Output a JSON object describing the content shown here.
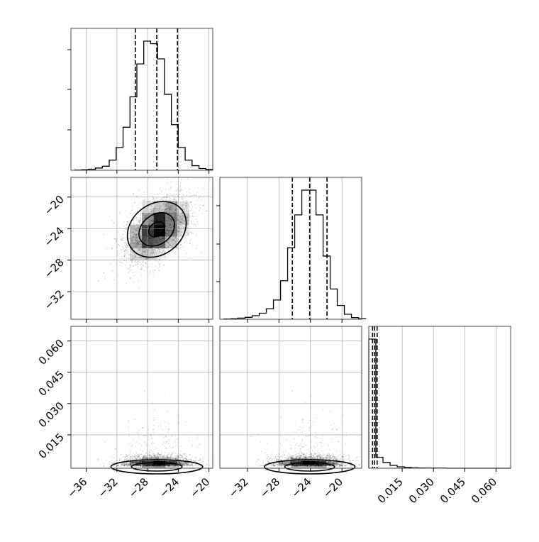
{
  "chart_data": {
    "type": "corner",
    "title": "",
    "parameters": [
      {
        "label": "",
        "range": [
          -38,
          -19.5
        ],
        "quantiles": [
          -29.6,
          -26.8,
          -24.1
        ]
      },
      {
        "label": "",
        "range": [
          -35.5,
          -17.5
        ],
        "quantiles": [
          -26.3,
          -24.1,
          -21.9
        ]
      },
      {
        "label": "",
        "range": [
          -0.001,
          0.067
        ],
        "quantiles": [
          0.0008,
          0.0018,
          0.003
        ]
      }
    ],
    "ticks": {
      "p1_x": [
        -36,
        -32,
        -28,
        -24,
        -20
      ],
      "p2": [
        -32,
        -28,
        -24,
        -20
      ],
      "p2_y": [
        -32,
        -28,
        -24,
        -20
      ],
      "p3": [
        0.015,
        0.03,
        0.045,
        0.06
      ]
    },
    "tick_labels": {
      "p1_x": [
        "−36",
        "−32",
        "−28",
        "−24",
        "−20"
      ],
      "p2_x": [
        "−32",
        "−28",
        "−24",
        "−20"
      ],
      "p2_y": [
        "−32",
        "−28",
        "−24",
        "−20"
      ],
      "p3": [
        "0.015",
        "0.030",
        "0.045",
        "0.060"
      ]
    },
    "histograms": [
      {
        "parameter": 1,
        "bin_start": -37.5,
        "bin_width": 0.9,
        "counts": [
          1,
          2,
          4,
          9,
          16,
          40,
          90,
          170,
          290,
          420,
          510,
          500,
          440,
          300,
          180,
          90,
          40,
          18,
          7,
          3
        ]
      },
      {
        "parameter": 2,
        "bin_start": -35.0,
        "bin_width": 0.9,
        "counts": [
          1,
          2,
          4,
          7,
          13,
          22,
          38,
          70,
          140,
          260,
          380,
          470,
          470,
          380,
          230,
          110,
          50,
          18,
          6,
          2
        ]
      },
      {
        "parameter": 3,
        "bin_start": -0.001,
        "bin_width": 0.0034,
        "counts": [
          1000,
          85,
          45,
          22,
          11,
          6,
          3,
          2,
          1,
          1,
          1,
          0,
          0,
          0,
          0,
          0,
          0,
          0,
          0,
          0
        ]
      }
    ],
    "correlations": {
      "p1_p2": 0.5,
      "p1_p3": 0.0,
      "p2_p3": 0.0
    },
    "centers": {
      "p1": -26.8,
      "p2": -24.1,
      "p3": 0.0018
    },
    "spreads": {
      "p1": 2.3,
      "p2": 2.2
    },
    "grid": true
  }
}
